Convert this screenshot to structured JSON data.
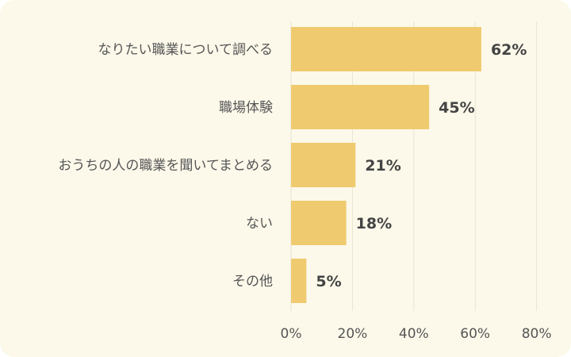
{
  "chart_data": {
    "type": "bar",
    "orientation": "horizontal",
    "categories": [
      "なりたい職業について調べる",
      "職場体験",
      "おうちの人の職業を聞いてまとめる",
      "ない",
      "その他"
    ],
    "values": [
      62,
      45,
      21,
      18,
      5
    ],
    "value_labels": [
      "62%",
      "45%",
      "21%",
      "18%",
      "5%"
    ],
    "xticks": [
      0,
      20,
      40,
      60,
      80
    ],
    "xtick_labels": [
      "0%",
      "20%",
      "40%",
      "60%",
      "80%"
    ],
    "xlim": [
      0,
      80
    ],
    "grid": true,
    "bar_color": "#efca6f",
    "background_color": "#fcf9ea",
    "title": "",
    "xlabel": "",
    "ylabel": ""
  }
}
